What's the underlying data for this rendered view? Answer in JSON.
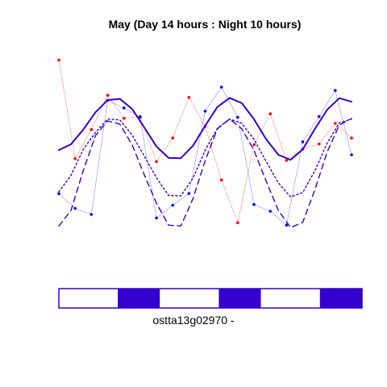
{
  "chart_data": {
    "type": "line",
    "title": "May (Day 14 hours : Night 10 hours)",
    "xlabel": "ostta13g02970 -",
    "ylabel": "",
    "x_range": [
      0,
      72
    ],
    "y_range": [
      0,
      1
    ],
    "grid": false,
    "legend": "none",
    "light_schedule": [
      {
        "state": "light",
        "start": 0,
        "end": 14
      },
      {
        "state": "dark",
        "start": 14,
        "end": 24
      },
      {
        "state": "light",
        "start": 24,
        "end": 38
      },
      {
        "state": "dark",
        "start": 38,
        "end": 48
      },
      {
        "state": "light",
        "start": 48,
        "end": 62
      },
      {
        "state": "dark",
        "start": 62,
        "end": 72
      }
    ],
    "series": [
      {
        "kind": "points",
        "color": "#ff0000",
        "x": [
          0,
          4,
          8,
          12,
          16,
          20,
          24,
          28,
          32,
          36,
          40,
          44,
          48,
          52,
          56,
          60,
          64,
          68,
          72
        ],
        "y": [
          0.951,
          0.541,
          0.662,
          0.805,
          0.709,
          0.716,
          0.529,
          0.627,
          0.796,
          0.675,
          0.452,
          0.274,
          0.599,
          0.728,
          0.534,
          0.581,
          0.602,
          0.688,
          0.627
        ]
      },
      {
        "kind": "points",
        "color": "#0000ff",
        "x": [
          0,
          4,
          8,
          12,
          16,
          20,
          24,
          28,
          32,
          36,
          40,
          44,
          48,
          52,
          56,
          60,
          64,
          68,
          72
        ],
        "y": [
          0.395,
          0.334,
          0.309,
          0.784,
          0.752,
          0.714,
          0.294,
          0.347,
          0.396,
          0.739,
          0.839,
          0.713,
          0.35,
          0.322,
          0.264,
          0.611,
          0.716,
          0.825,
          0.557
        ]
      },
      {
        "kind": "fit",
        "style": "solid",
        "color": "#3300cc",
        "x": [
          0,
          3,
          6,
          9,
          12,
          15,
          18,
          21,
          24,
          27,
          30,
          33,
          36,
          39,
          42,
          45,
          48,
          51,
          54,
          57,
          60,
          63,
          66,
          69,
          72
        ],
        "y": [
          0.577,
          0.601,
          0.662,
          0.734,
          0.785,
          0.79,
          0.748,
          0.671,
          0.592,
          0.544,
          0.543,
          0.595,
          0.678,
          0.756,
          0.794,
          0.772,
          0.705,
          0.622,
          0.557,
          0.536,
          0.58,
          0.665,
          0.745,
          0.793,
          0.778
        ]
      },
      {
        "kind": "fit",
        "style": "dashed",
        "color": "#3300cc",
        "x": [
          0,
          3,
          6,
          9,
          12,
          15,
          18,
          21,
          24,
          27,
          30,
          33,
          36,
          39,
          42,
          45,
          48,
          51,
          54,
          57,
          60,
          63,
          66,
          69,
          72
        ],
        "y": [
          0.26,
          0.326,
          0.492,
          0.637,
          0.698,
          0.685,
          0.599,
          0.474,
          0.356,
          0.264,
          0.261,
          0.375,
          0.533,
          0.665,
          0.706,
          0.665,
          0.576,
          0.447,
          0.325,
          0.254,
          0.276,
          0.412,
          0.569,
          0.681,
          0.708
        ]
      },
      {
        "kind": "fit",
        "style": "dotted",
        "color": "#3300cc",
        "x": [
          0,
          3,
          6,
          9,
          12,
          15,
          18,
          21,
          24,
          27,
          30,
          33,
          36,
          39,
          42,
          45,
          48,
          51,
          54,
          57,
          60,
          63,
          66,
          69,
          72
        ],
        "y": [
          0.403,
          0.472,
          0.58,
          0.65,
          0.706,
          0.702,
          0.64,
          0.552,
          0.462,
          0.388,
          0.386,
          0.46,
          0.576,
          0.667,
          0.706,
          0.688,
          0.621,
          0.53,
          0.44,
          0.382,
          0.4,
          0.491,
          0.606,
          0.69,
          0.706
        ]
      }
    ]
  }
}
